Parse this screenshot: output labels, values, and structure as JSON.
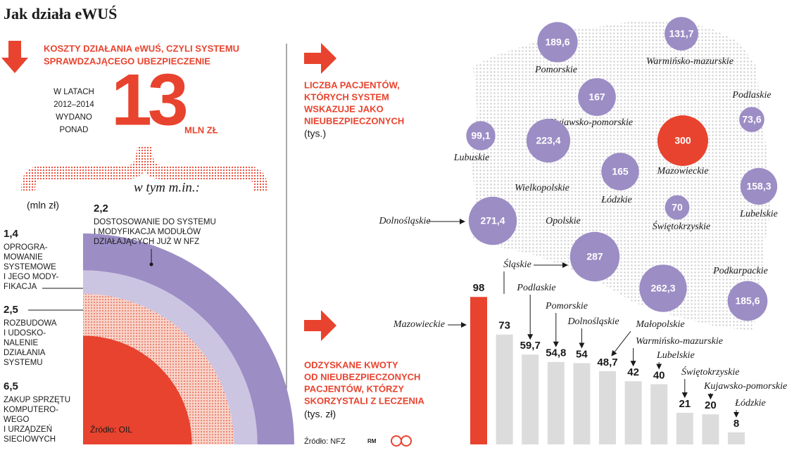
{
  "title": "Jak działa eWUŚ",
  "credit": "RM",
  "chart_data": [
    {
      "type": "nested-arc",
      "title": [
        "KOSZTY DZIAŁANIA eWUŚ, CZYLI SYSTEMU",
        "SPRAWDZAJĄCEGO UBEZPIECZENIE"
      ],
      "intro": [
        "W LATACH",
        "2012–2014",
        "WYDANO",
        "PONAD"
      ],
      "total": 13,
      "total_unit": "MLN ZŁ",
      "subtitle": "w tym m.in.:",
      "unit": "(mln zł)",
      "category_lines": [
        [
          "ZAKUP SPRZĘTU",
          "KOMPUTERO-",
          "WEGO",
          "I URZĄDZEŃ",
          "SIECIOWYCH"
        ],
        [
          "ROZBUDOWA",
          "I UDOSKO-",
          "NALENIE",
          "DZIAŁANIA",
          "SYSTEMU"
        ],
        [
          "OPROGRA-",
          "MOWANIE",
          "SYSTEMOWE",
          "I JEGO MODY-",
          "FIKACJA"
        ],
        [
          "DOSTOSOWANIE DO SYSTEMU",
          "I MODYFIKACJA MODUŁÓW",
          "DZIAŁAJĄCYCH JUŻ W NFZ"
        ]
      ],
      "values": [
        6.5,
        2.5,
        1.4,
        2.2
      ],
      "value_labels": [
        "6,5",
        "2,5",
        "1,4",
        "2,2"
      ],
      "colors": [
        "#e8432e",
        "#f6c2b6",
        "#cbc5e2",
        "#9c8dc5"
      ],
      "source": "Źródło: OIL"
    },
    {
      "type": "bubble",
      "title": [
        "LICZBA PACJENTÓW,",
        "KTÓRYCH SYSTEM",
        "WSKAZUJE JAKO",
        "NIEUBEZPIECZONYCH"
      ],
      "unit": "(tys.)",
      "categories": [
        "Pomorskie",
        "Warmińsko-mazurskie",
        "Kujawsko-pomorskie",
        "Podlaskie",
        "Lubuskie",
        "Wielkopolskie",
        "Łódzkie",
        "Mazowieckie",
        "Lubelskie",
        "Dolnośląskie",
        "Opolskie",
        "Świętokrzyskie",
        null,
        null,
        "Podkarpackie"
      ],
      "values": [
        189.6,
        131.7,
        167,
        73.6,
        99.1,
        223.4,
        165,
        300,
        158.3,
        271.4,
        null,
        70,
        287,
        262.3,
        185.6
      ],
      "value_labels": [
        "189,6",
        "131,7",
        "167",
        "73,6",
        "99,1",
        "223,4",
        "165",
        "300",
        "158,3",
        "271,4",
        null,
        "70",
        "287",
        "262,3",
        "185,6"
      ],
      "colors": [
        "#9c8dc5",
        "#9c8dc5",
        "#9c8dc5",
        "#9c8dc5",
        "#9c8dc5",
        "#9c8dc5",
        "#9c8dc5",
        "#e8432e",
        "#9c8dc5",
        "#9c8dc5",
        "#9c8dc5",
        "#9c8dc5",
        "#9c8dc5",
        "#9c8dc5",
        "#9c8dc5"
      ]
    },
    {
      "type": "bar",
      "title": [
        "ODZYSKANE KWOTY",
        "OD NIEUBEZPIECZONYCH",
        "PACJENTÓW, KTÓRZY",
        "SKORZYSTALI Z LECZENIA"
      ],
      "unit": "(tys. zł)",
      "categories": [
        "Mazowieckie",
        "Śląskie",
        "Podlaskie",
        "Pomorskie",
        "Dolnośląskie",
        "Małopolskie",
        "Warmińsko-mazurskie",
        "Lubelskie",
        "Świętokrzyskie",
        "Kujawsko-pomorskie",
        "Łódzkie"
      ],
      "values": [
        98,
        73,
        59.7,
        54.8,
        54,
        48.7,
        42,
        40,
        21,
        20,
        8
      ],
      "value_labels": [
        "98",
        "73",
        "59,7",
        "54,8",
        "54",
        "48,7",
        "42",
        "40",
        "21",
        "20",
        "8"
      ],
      "colors": [
        "#e8432e",
        "#dcdcdc",
        "#dcdcdc",
        "#dcdcdc",
        "#dcdcdc",
        "#dcdcdc",
        "#dcdcdc",
        "#dcdcdc",
        "#dcdcdc",
        "#dcdcdc",
        "#dcdcdc"
      ],
      "source": "Źródło: NFZ"
    }
  ]
}
